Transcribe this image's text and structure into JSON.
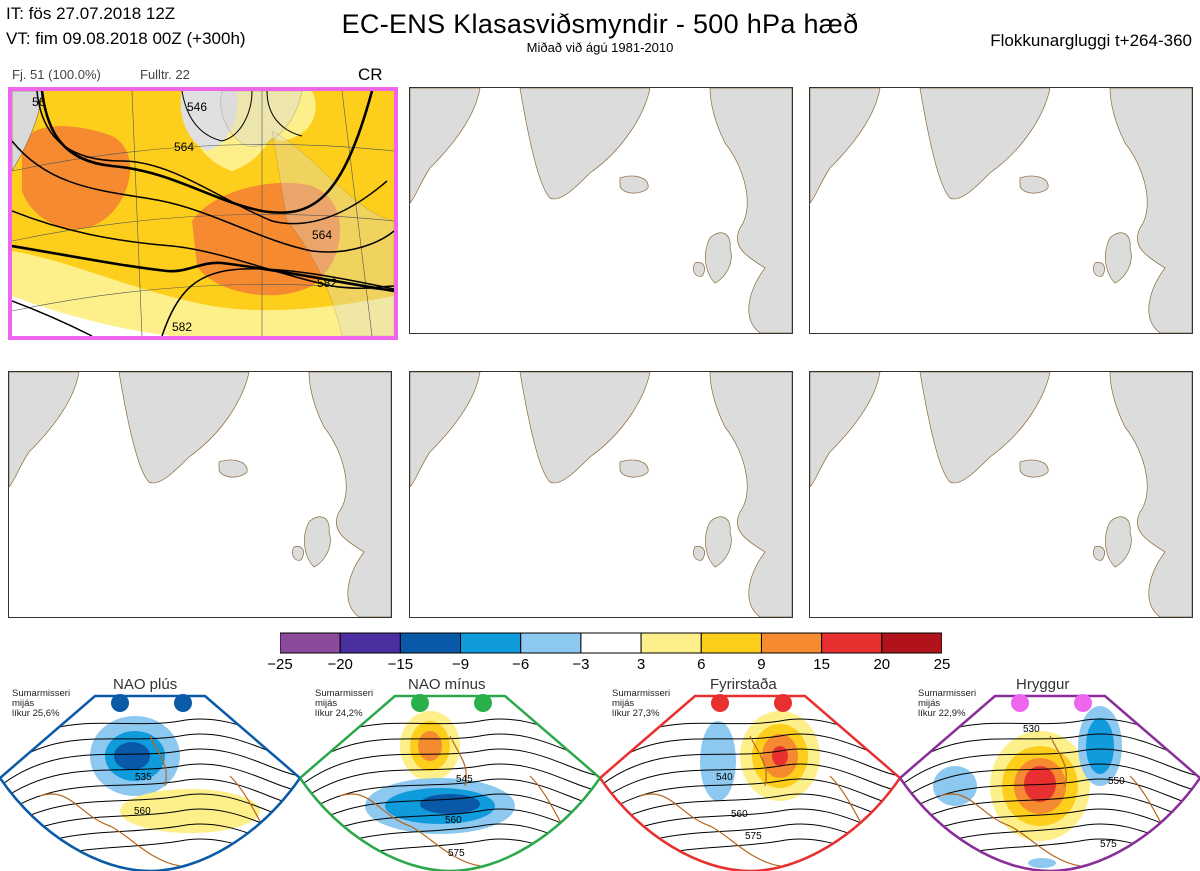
{
  "header": {
    "it_line": "IT: fös 27.07.2018 12Z",
    "vt_line": "VT: fim 09.08.2018 00Z  (+300h)",
    "title": "EC-ENS Klasasviðsmyndir - 500 hPa hæð",
    "subtitle": "Miðað við ágú 1981-2010",
    "window": "Flokkunargluggi t+264-360"
  },
  "main_cluster": {
    "count_label": "Fj. 51 (100.0%)",
    "rep_label": "Fulltr. 22",
    "regime_code": "CR",
    "border_color": "#ee66ee",
    "contour_labels": [
      "546",
      "564",
      "564",
      "582",
      "56",
      "582"
    ]
  },
  "empty_panels": 5,
  "colorbar": {
    "colors": [
      "#8b4a9c",
      "#4b2ea0",
      "#0a58a8",
      "#109bdc",
      "#8cc8ef",
      "#ffffff",
      "#fdf08a",
      "#fdcf1c",
      "#f58a30",
      "#e83030",
      "#b0141a"
    ],
    "ticks": [
      "−25",
      "−20",
      "−15",
      "−9",
      "−6",
      "−3",
      "3",
      "6",
      "9",
      "15",
      "20",
      "25"
    ]
  },
  "regimes": [
    {
      "name": "NAO plús",
      "season": "Sumarmisseri",
      "mean": "mijás",
      "prob": "líkur 25,6%",
      "color": "#0a5aa8",
      "dot_color": "#0a5aa8",
      "labels": [
        "535",
        "560"
      ]
    },
    {
      "name": "NAO mínus",
      "season": "Sumarmisseri",
      "mean": "mijás",
      "prob": "líkur 24,2%",
      "color": "#2aa84a",
      "dot_color": "#2ab04a",
      "labels": [
        "545",
        "560",
        "575"
      ]
    },
    {
      "name": "Fyrirstaða",
      "season": "Sumarmisseri",
      "mean": "mijás",
      "prob": "líkur 27,3%",
      "color": "#e83030",
      "dot_color": "#e83030",
      "labels": [
        "540",
        "560",
        "575"
      ]
    },
    {
      "name": "Hryggur",
      "season": "Sumarmisseri",
      "mean": "mijás",
      "prob": "líkur 22,9%",
      "color": "#8a2e9a",
      "dot_color": "#ee66ee",
      "labels": [
        "530",
        "550",
        "575"
      ]
    }
  ]
}
